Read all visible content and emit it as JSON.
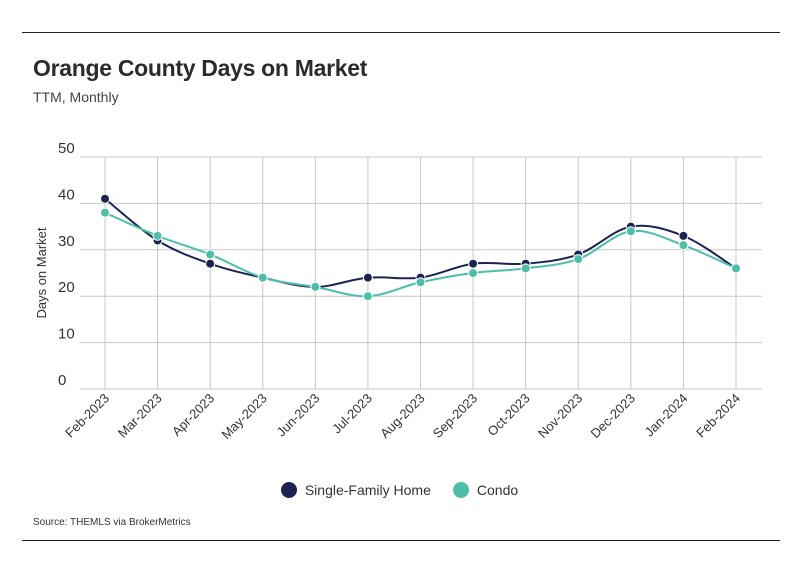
{
  "title": "Orange County Days on Market",
  "subtitle": "TTM, Monthly",
  "source": "Source:  THEMLS via BrokerMetrics",
  "colors": {
    "single_family": "#1c2350",
    "condo": "#4dbea8",
    "grid": "#c8c8c8",
    "text": "#333333"
  },
  "chart_data": {
    "type": "line",
    "categories": [
      "Feb-2023",
      "Mar-2023",
      "Apr-2023",
      "May-2023",
      "Jun-2023",
      "Jul-2023",
      "Aug-2023",
      "Sep-2023",
      "Oct-2023",
      "Nov-2023",
      "Dec-2023",
      "Jan-2024",
      "Feb-2024"
    ],
    "series": [
      {
        "name": "Single-Family Home",
        "values": [
          41,
          32,
          27,
          24,
          22,
          24,
          24,
          27,
          27,
          29,
          35,
          33,
          26
        ]
      },
      {
        "name": "Condo",
        "values": [
          38,
          33,
          29,
          24,
          22,
          20,
          23,
          25,
          26,
          28,
          34,
          31,
          26
        ]
      }
    ],
    "ylabel": "Days on Market",
    "xlabel": "",
    "ylim": [
      0,
      50
    ],
    "yticks": [
      0,
      10,
      20,
      30,
      40,
      50
    ],
    "grid": true,
    "legend": "bottom-center"
  }
}
